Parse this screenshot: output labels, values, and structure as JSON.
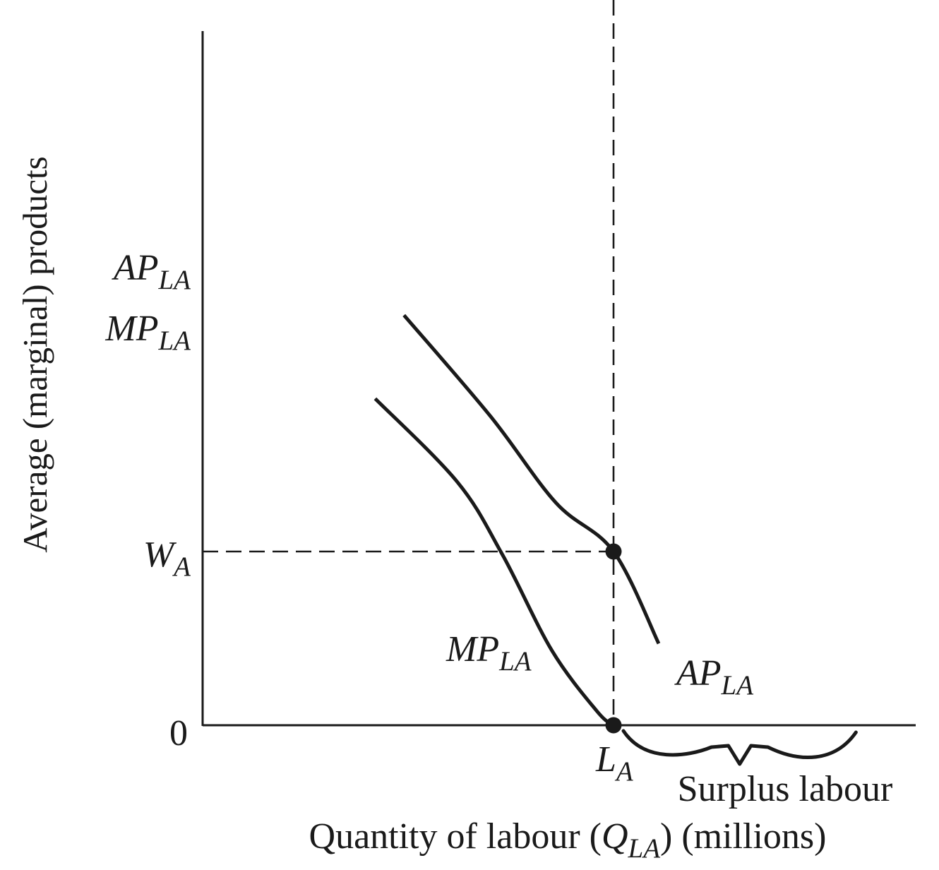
{
  "chart_data": {
    "type": "line",
    "title": "",
    "xlabel": {
      "prefix": "Quantity of labour (",
      "var": "Q",
      "sub": "LA",
      "suffix": ") (millions)"
    },
    "ylabel": "Average (marginal) products",
    "y_axis_labels": [
      {
        "main": "AP",
        "sub": "LA"
      },
      {
        "main": "MP",
        "sub": "LA"
      }
    ],
    "y_ticks": [
      {
        "main": "W",
        "sub": "A",
        "y": 1
      },
      {
        "main": "0",
        "sub": "",
        "y": 0
      }
    ],
    "x_ticks": [
      {
        "main": "L",
        "sub": "A",
        "x": 1
      }
    ],
    "xlim": [
      0,
      1.75
    ],
    "ylim": [
      0,
      4.0
    ],
    "series": [
      {
        "name": {
          "main": "AP",
          "sub": "LA"
        },
        "points": [
          [
            0.49,
            2.36
          ],
          [
            0.7,
            1.78
          ],
          [
            0.86,
            1.28
          ],
          [
            1.0,
            1.0
          ],
          [
            1.11,
            0.47
          ]
        ]
      },
      {
        "name": {
          "main": "MP",
          "sub": "LA"
        },
        "points": [
          [
            0.42,
            1.88
          ],
          [
            0.62,
            1.4
          ],
          [
            0.73,
            0.98
          ],
          [
            0.85,
            0.43
          ],
          [
            0.96,
            0.08
          ],
          [
            1.0,
            0.0
          ]
        ]
      }
    ],
    "points": [
      {
        "x": 1.0,
        "y": 1.0
      },
      {
        "x": 1.0,
        "y": 0.0
      }
    ],
    "annotations": [
      {
        "text": "Surplus labour",
        "from_x": 1.0,
        "to_x": 1.59
      }
    ],
    "grid": false,
    "legend": "none"
  }
}
